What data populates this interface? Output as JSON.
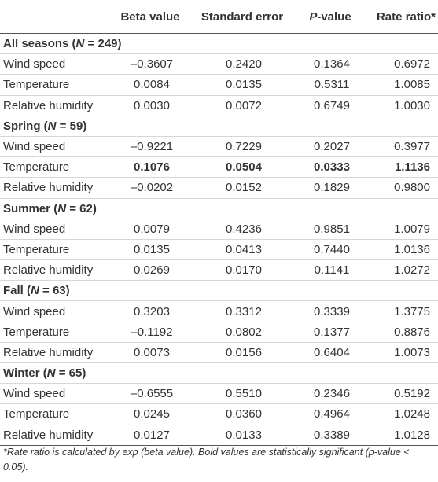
{
  "table": {
    "headers": {
      "beta": "Beta value",
      "se": "Standard error",
      "p_italic": "P",
      "p_suffix": "-value",
      "rr": "Rate ratio*"
    },
    "sections": [
      {
        "name": "All seasons",
        "n_letter": "N",
        "n_text": " = 249",
        "rows": [
          {
            "label": "Wind speed",
            "beta": "–0.3607",
            "se": "0.2420",
            "p": "0.1364",
            "rr": "0.6972",
            "significant": false
          },
          {
            "label": "Temperature",
            "beta": "0.0084",
            "se": "0.0135",
            "p": "0.5311",
            "rr": "1.0085",
            "significant": false
          },
          {
            "label": "Relative humidity",
            "beta": "0.0030",
            "se": "0.0072",
            "p": "0.6749",
            "rr": "1.0030",
            "significant": false
          }
        ]
      },
      {
        "name": "Spring",
        "n_letter": "N",
        "n_text": " = 59",
        "rows": [
          {
            "label": "Wind speed",
            "beta": "–0.9221",
            "se": "0.7229",
            "p": "0.2027",
            "rr": "0.3977",
            "significant": false
          },
          {
            "label": "Temperature",
            "beta": "0.1076",
            "se": "0.0504",
            "p": "0.0333",
            "rr": "1.1136",
            "significant": true
          },
          {
            "label": "Relative humidity",
            "beta": "–0.0202",
            "se": "0.0152",
            "p": "0.1829",
            "rr": "0.9800",
            "significant": false
          }
        ]
      },
      {
        "name": "Summer",
        "n_letter": "N",
        "n_text": " = 62",
        "rows": [
          {
            "label": "Wind speed",
            "beta": "0.0079",
            "se": "0.4236",
            "p": "0.9851",
            "rr": "1.0079",
            "significant": false
          },
          {
            "label": "Temperature",
            "beta": "0.0135",
            "se": "0.0413",
            "p": "0.7440",
            "rr": "1.0136",
            "significant": false
          },
          {
            "label": "Relative humidity",
            "beta": "0.0269",
            "se": "0.0170",
            "p": "0.1141",
            "rr": "1.0272",
            "significant": false
          }
        ]
      },
      {
        "name": "Fall",
        "n_letter": "N",
        "n_text": " = 63",
        "rows": [
          {
            "label": "Wind speed",
            "beta": "0.3203",
            "se": "0.3312",
            "p": "0.3339",
            "rr": "1.3775",
            "significant": false
          },
          {
            "label": "Temperature",
            "beta": "–0.1192",
            "se": "0.0802",
            "p": "0.1377",
            "rr": "0.8876",
            "significant": false
          },
          {
            "label": "Relative humidity",
            "beta": "0.0073",
            "se": "0.0156",
            "p": "0.6404",
            "rr": "1.0073",
            "significant": false
          }
        ]
      },
      {
        "name": "Winter",
        "n_letter": "N",
        "n_text": " = 65",
        "rows": [
          {
            "label": "Wind speed",
            "beta": "–0.6555",
            "se": "0.5510",
            "p": "0.2346",
            "rr": "0.5192",
            "significant": false
          },
          {
            "label": "Temperature",
            "beta": "0.0245",
            "se": "0.0360",
            "p": "0.4964",
            "rr": "1.0248",
            "significant": false
          },
          {
            "label": "Relative humidity",
            "beta": "0.0127",
            "se": "0.0133",
            "p": "0.3389",
            "rr": "1.0128",
            "significant": false
          }
        ]
      }
    ]
  },
  "footnote": "*Rate ratio is calculated by exp (beta value). Bold values are statistically significant (p-value < 0.05)."
}
